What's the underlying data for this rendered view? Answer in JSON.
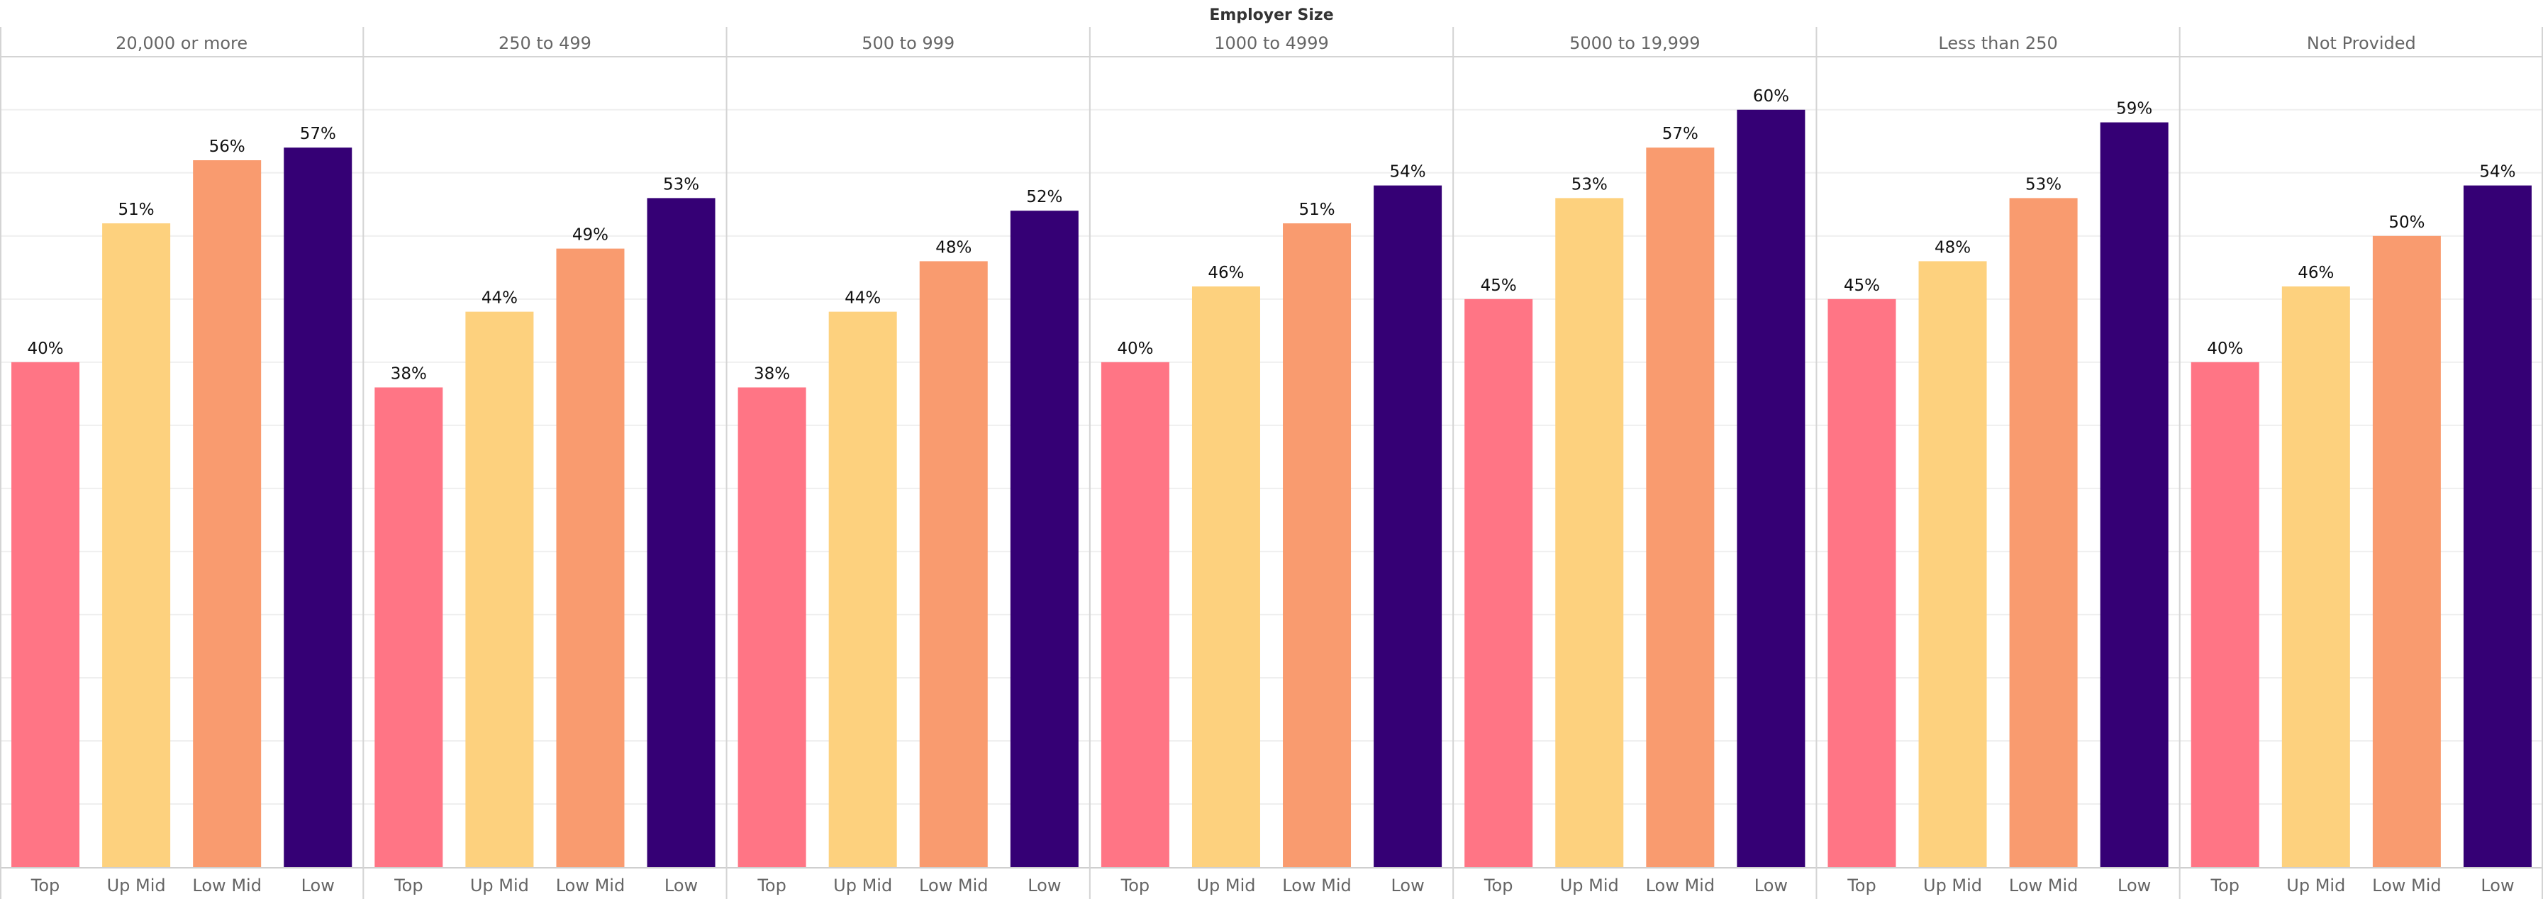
{
  "chart_data": {
    "type": "bar",
    "title": "Employer Size",
    "xlabel": "",
    "ylabel": "",
    "ylim": [
      0,
      64.2
    ],
    "grid": true,
    "gridline_step": 5,
    "value_format": "percent",
    "categories": [
      "Top",
      "Up Mid",
      "Low Mid",
      "Low"
    ],
    "colors": {
      "Top": "#FF7585",
      "Up Mid": "#FDD17E",
      "Low Mid": "#F99B6F",
      "Low": "#350075"
    },
    "panels": [
      {
        "name": "20,000 or more",
        "values": [
          40,
          51,
          56,
          57
        ]
      },
      {
        "name": "250 to 499",
        "values": [
          38,
          44,
          49,
          53
        ]
      },
      {
        "name": "500 to 999",
        "values": [
          38,
          44,
          48,
          52
        ]
      },
      {
        "name": "1000 to 4999",
        "values": [
          40,
          46,
          51,
          54
        ]
      },
      {
        "name": "5000 to 19,999",
        "values": [
          45,
          53,
          57,
          60
        ]
      },
      {
        "name": "Less than 250",
        "values": [
          45,
          48,
          53,
          59
        ]
      },
      {
        "name": "Not Provided",
        "values": [
          40,
          46,
          50,
          54
        ]
      }
    ]
  }
}
